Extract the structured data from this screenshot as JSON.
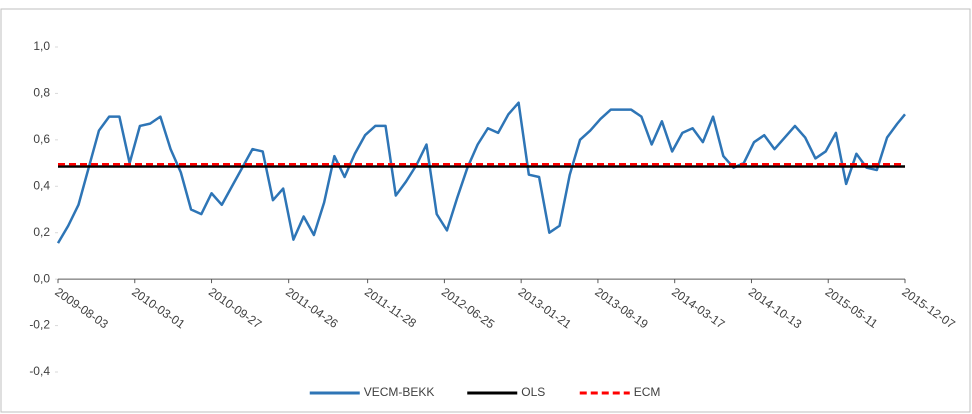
{
  "chart_data": {
    "type": "line",
    "xlim": [
      "2009-08-03",
      "2015-12-07"
    ],
    "xticks": [
      "2009-08-03",
      "2010-03-01",
      "2010-09-27",
      "2011-04-26",
      "2011-11-28",
      "2012-06-25",
      "2013-01-21",
      "2013-08-19",
      "2014-03-17",
      "2014-10-13",
      "2015-05-11",
      "2015-12-07"
    ],
    "ylim": [
      -0.4,
      1.0
    ],
    "yticks": [
      {
        "value": -0.4,
        "label": "-0,4"
      },
      {
        "value": -0.2,
        "label": "-0,2"
      },
      {
        "value": 0,
        "label": "0,0"
      },
      {
        "value": 0.2,
        "label": "0,2"
      },
      {
        "value": 0.4,
        "label": "0,4"
      },
      {
        "value": 0.6,
        "label": "0,6"
      },
      {
        "value": 0.8,
        "label": "0,8"
      },
      {
        "value": 1.0,
        "label": "1,0"
      }
    ],
    "legend": "bottom",
    "series": [
      {
        "name": "VECM-BEKK",
        "color": "#2e75b6",
        "style": "solid",
        "x": [
          "2009-08-03",
          "2009-08-31",
          "2009-09-28",
          "2009-10-26",
          "2009-11-23",
          "2009-12-21",
          "2010-01-18",
          "2010-02-15",
          "2010-03-15",
          "2010-04-12",
          "2010-05-10",
          "2010-06-07",
          "2010-07-05",
          "2010-08-02",
          "2010-08-30",
          "2010-09-27",
          "2010-10-25",
          "2010-11-22",
          "2010-12-20",
          "2011-01-17",
          "2011-02-14",
          "2011-03-14",
          "2011-04-11",
          "2011-05-09",
          "2011-06-06",
          "2011-07-04",
          "2011-08-01",
          "2011-08-29",
          "2011-09-26",
          "2011-10-24",
          "2011-11-21",
          "2011-12-19",
          "2012-01-16",
          "2012-02-13",
          "2012-03-12",
          "2012-04-09",
          "2012-05-07",
          "2012-06-04",
          "2012-07-02",
          "2012-07-30",
          "2012-08-27",
          "2012-09-24",
          "2012-10-22",
          "2012-11-19",
          "2012-12-17",
          "2013-01-14",
          "2013-02-11",
          "2013-03-11",
          "2013-04-08",
          "2013-05-06",
          "2013-06-03",
          "2013-07-01",
          "2013-07-29",
          "2013-08-26",
          "2013-09-23",
          "2013-10-21",
          "2013-11-18",
          "2013-12-16",
          "2014-01-13",
          "2014-02-10",
          "2014-03-10",
          "2014-04-07",
          "2014-05-05",
          "2014-06-02",
          "2014-06-30",
          "2014-07-28",
          "2014-08-25",
          "2014-09-22",
          "2014-10-20",
          "2014-11-17",
          "2014-12-15",
          "2015-01-12",
          "2015-02-09",
          "2015-03-09",
          "2015-04-06",
          "2015-05-04",
          "2015-06-01",
          "2015-06-29",
          "2015-07-27",
          "2015-08-24",
          "2015-09-21",
          "2015-10-19",
          "2015-11-16",
          "2015-12-07"
        ],
        "values": [
          0.155,
          0.23,
          0.32,
          0.48,
          0.64,
          0.7,
          0.7,
          0.5,
          0.66,
          0.67,
          0.7,
          0.56,
          0.46,
          0.3,
          0.28,
          0.37,
          0.32,
          0.4,
          0.48,
          0.56,
          0.55,
          0.34,
          0.39,
          0.17,
          0.27,
          0.19,
          0.33,
          0.53,
          0.44,
          0.54,
          0.62,
          0.66,
          0.66,
          0.36,
          0.42,
          0.49,
          0.58,
          0.28,
          0.21,
          0.35,
          0.48,
          0.58,
          0.65,
          0.63,
          0.71,
          0.76,
          0.45,
          0.44,
          0.2,
          0.23,
          0.45,
          0.6,
          0.64,
          0.69,
          0.73,
          0.73,
          0.73,
          0.7,
          0.58,
          0.68,
          0.55,
          0.63,
          0.65,
          0.59,
          0.7,
          0.53,
          0.48,
          0.5,
          0.59,
          0.62,
          0.56,
          0.61,
          0.66,
          0.61,
          0.52,
          0.55,
          0.63,
          0.41,
          0.54,
          0.48,
          0.47,
          0.61,
          0.67,
          0.71
        ]
      },
      {
        "name": "OLS",
        "color": "#000000",
        "style": "solid",
        "x": [
          "2009-08-03",
          "2015-12-07"
        ],
        "values": [
          0.485,
          0.485
        ]
      },
      {
        "name": "ECM",
        "color": "#ff0000",
        "style": "dashed",
        "x": [
          "2009-08-03",
          "2015-12-07"
        ],
        "values": [
          0.495,
          0.495
        ]
      }
    ]
  }
}
